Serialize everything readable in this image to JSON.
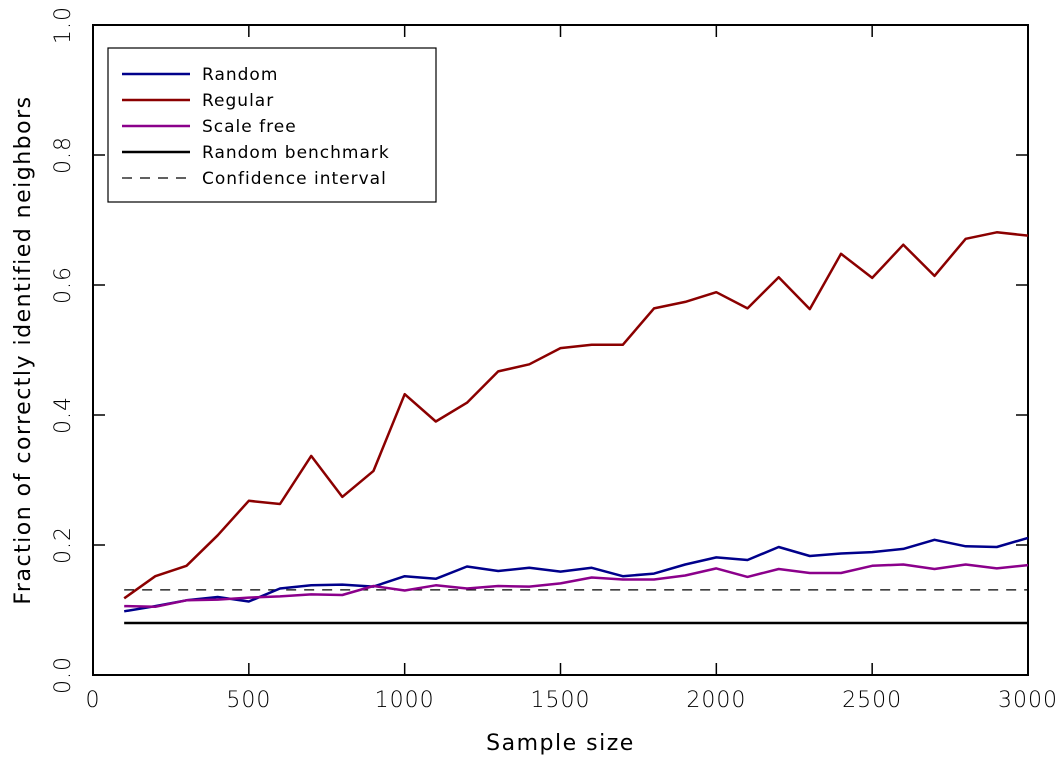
{
  "chart_data": {
    "type": "line",
    "xlabel": "Sample size",
    "ylabel": "Fraction of correctly identified neighbors",
    "xlim": [
      0,
      3000
    ],
    "ylim": [
      0,
      1
    ],
    "x_ticks": [
      0,
      500,
      1000,
      1500,
      2000,
      2500,
      3000
    ],
    "y_ticks": [
      0.0,
      0.2,
      0.4,
      0.6,
      0.8,
      1.0
    ],
    "x_tick_labels": [
      "0",
      "500",
      "1000",
      "1500",
      "2000",
      "2500",
      "3000"
    ],
    "y_tick_labels": [
      "0.0",
      "0.2",
      "0.4",
      "0.6",
      "0.8",
      "1.0"
    ],
    "grid": false,
    "legend_position": "top-left",
    "x": [
      100,
      200,
      300,
      400,
      500,
      600,
      700,
      800,
      900,
      1000,
      1100,
      1200,
      1300,
      1400,
      1500,
      1600,
      1700,
      1800,
      1900,
      2000,
      2100,
      2200,
      2300,
      2400,
      2500,
      2600,
      2700,
      2800,
      2900,
      3000
    ],
    "series": [
      {
        "name": "Random",
        "color": "#00008b",
        "style": "solid",
        "values": [
          0.098,
          0.106,
          0.115,
          0.12,
          0.113,
          0.133,
          0.138,
          0.139,
          0.136,
          0.152,
          0.148,
          0.167,
          0.16,
          0.165,
          0.159,
          0.165,
          0.152,
          0.156,
          0.17,
          0.181,
          0.177,
          0.197,
          0.183,
          0.187,
          0.189,
          0.194,
          0.208,
          0.198,
          0.197,
          0.211
        ]
      },
      {
        "name": "Regular",
        "color": "#8b0000",
        "style": "solid",
        "values": [
          0.118,
          0.152,
          0.168,
          0.215,
          0.268,
          0.263,
          0.337,
          0.274,
          0.314,
          0.432,
          0.39,
          0.419,
          0.467,
          0.478,
          0.503,
          0.508,
          0.508,
          0.564,
          0.574,
          0.589,
          0.564,
          0.612,
          0.563,
          0.648,
          0.611,
          0.662,
          0.614,
          0.671,
          0.681,
          0.676
        ]
      },
      {
        "name": "Scale free",
        "color": "#8b008b",
        "style": "solid",
        "values": [
          0.106,
          0.105,
          0.115,
          0.116,
          0.119,
          0.121,
          0.124,
          0.123,
          0.137,
          0.13,
          0.138,
          0.133,
          0.137,
          0.136,
          0.141,
          0.15,
          0.147,
          0.147,
          0.153,
          0.164,
          0.151,
          0.163,
          0.157,
          0.157,
          0.168,
          0.17,
          0.163,
          0.17,
          0.164,
          0.169
        ]
      }
    ],
    "reference_lines": [
      {
        "name": "Random benchmark",
        "color": "#000000",
        "style": "solid",
        "value": 0.08
      },
      {
        "name": "Confidence interval",
        "color": "#000000",
        "style": "dashed",
        "value": 0.131
      }
    ],
    "legend": [
      "Random",
      "Regular",
      "Scale free",
      "Random benchmark",
      "Confidence interval"
    ]
  }
}
